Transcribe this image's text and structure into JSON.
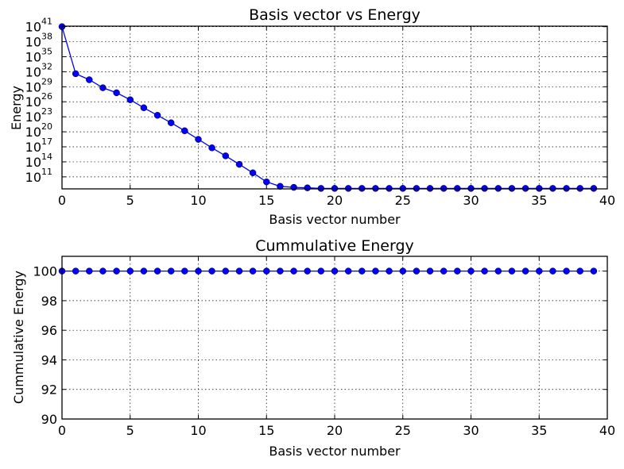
{
  "colors": {
    "series": "#0000ff",
    "grid": "#000000",
    "axes": "#000000",
    "background": "#ffffff"
  },
  "chart_data": [
    {
      "type": "line",
      "title": "Basis vector vs Energy",
      "xlabel": "Basis vector number",
      "ylabel": "Energy",
      "xlim": [
        0,
        40
      ],
      "ylim_exponent": [
        8.6,
        41.1
      ],
      "yscale": "log",
      "grid": true,
      "marker": "circle",
      "x_ticks": [
        0,
        5,
        10,
        15,
        20,
        25,
        30,
        35,
        40
      ],
      "x_tick_labels": [
        "0",
        "5",
        "10",
        "15",
        "20",
        "25",
        "30",
        "35",
        "40"
      ],
      "y_ticks_exponent": [
        11,
        14,
        17,
        20,
        23,
        26,
        29,
        32,
        35,
        38,
        41
      ],
      "y_tick_base": "10",
      "y_tick_exponent_labels": [
        "11",
        "14",
        "17",
        "20",
        "23",
        "26",
        "29",
        "32",
        "35",
        "38",
        "41"
      ],
      "x": [
        0,
        1,
        2,
        3,
        4,
        5,
        6,
        7,
        8,
        9,
        10,
        11,
        12,
        13,
        14,
        15,
        16,
        17,
        18,
        19,
        20,
        21,
        22,
        23,
        24,
        25,
        26,
        27,
        28,
        29,
        30,
        31,
        32,
        33,
        34,
        35,
        36,
        37,
        38,
        39
      ],
      "log10_values": [
        41.0,
        31.6,
        30.4,
        28.8,
        27.8,
        26.4,
        24.8,
        23.3,
        21.8,
        20.2,
        18.5,
        16.8,
        15.2,
        13.5,
        11.8,
        10.0,
        9.1,
        8.9,
        8.8,
        8.7,
        8.7,
        8.7,
        8.7,
        8.7,
        8.7,
        8.7,
        8.7,
        8.7,
        8.7,
        8.7,
        8.7,
        8.7,
        8.7,
        8.7,
        8.7,
        8.7,
        8.7,
        8.7,
        8.7,
        8.7
      ]
    },
    {
      "type": "line",
      "title": "Cummulative Energy",
      "xlabel": "Basis vector number",
      "ylabel": "Cummulative Energy",
      "xlim": [
        0,
        40
      ],
      "ylim": [
        90,
        101
      ],
      "grid": true,
      "marker": "circle",
      "x_ticks": [
        0,
        5,
        10,
        15,
        20,
        25,
        30,
        35,
        40
      ],
      "x_tick_labels": [
        "0",
        "5",
        "10",
        "15",
        "20",
        "25",
        "30",
        "35",
        "40"
      ],
      "y_ticks": [
        90,
        92,
        94,
        96,
        98,
        100
      ],
      "y_tick_labels": [
        "90",
        "92",
        "94",
        "96",
        "98",
        "100"
      ],
      "x": [
        0,
        1,
        2,
        3,
        4,
        5,
        6,
        7,
        8,
        9,
        10,
        11,
        12,
        13,
        14,
        15,
        16,
        17,
        18,
        19,
        20,
        21,
        22,
        23,
        24,
        25,
        26,
        27,
        28,
        29,
        30,
        31,
        32,
        33,
        34,
        35,
        36,
        37,
        38,
        39
      ],
      "values": [
        100,
        100,
        100,
        100,
        100,
        100,
        100,
        100,
        100,
        100,
        100,
        100,
        100,
        100,
        100,
        100,
        100,
        100,
        100,
        100,
        100,
        100,
        100,
        100,
        100,
        100,
        100,
        100,
        100,
        100,
        100,
        100,
        100,
        100,
        100,
        100,
        100,
        100,
        100,
        100
      ]
    }
  ]
}
